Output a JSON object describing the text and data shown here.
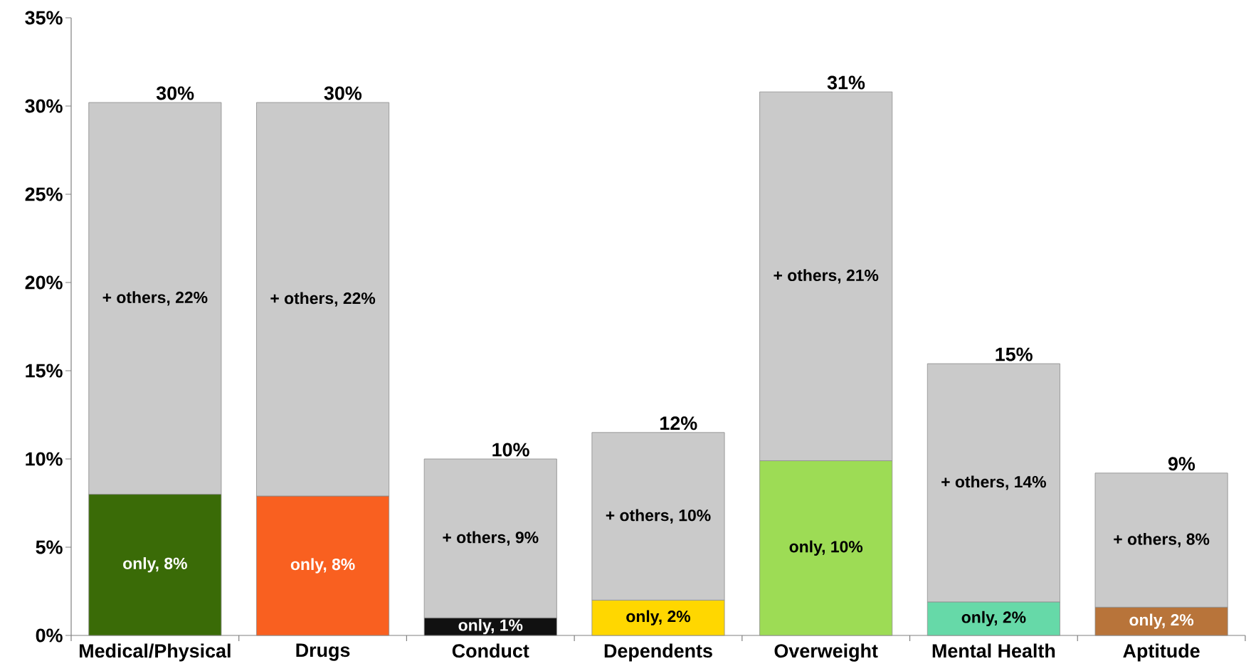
{
  "chart_data": {
    "type": "bar",
    "stacked": true,
    "categories": [
      "Medical/Physical",
      "Drugs",
      "Conduct",
      "Dependents",
      "Overweight",
      "Mental Health",
      "Aptitude"
    ],
    "series": [
      {
        "colors": [
          "#3a6b07",
          "#f96020",
          "#111111",
          "#ffd700",
          "#9ddc55",
          "#66d9a8",
          "#b8743a"
        ],
        "values": [
          8.0,
          7.9,
          1.0,
          2.0,
          9.9,
          1.9,
          1.6
        ],
        "value_labels": [
          "only, 8%",
          "only, 8%",
          "only, 1%",
          "only, 2%",
          "only, 10%",
          "only, 2%",
          "only, 2%"
        ]
      },
      {
        "color": "#cacaca",
        "values": [
          22.2,
          22.3,
          9.0,
          9.5,
          20.9,
          13.5,
          7.6
        ],
        "value_labels": [
          "+ others, 22%",
          "+ others, 22%",
          "+ others, 9%",
          "+ others, 10%",
          "+ others, 21%",
          "+ others, 14%",
          "+ others, 8%"
        ]
      }
    ],
    "totals": [
      "30%",
      "30%",
      "10%",
      "12%",
      "31%",
      "15%",
      "9%"
    ],
    "ylim": [
      0,
      35
    ],
    "yticks": [
      {
        "value": 0,
        "label": "0%"
      },
      {
        "value": 5,
        "label": "5%"
      },
      {
        "value": 10,
        "label": "10%"
      },
      {
        "value": 15,
        "label": "15%"
      },
      {
        "value": 20,
        "label": "20%"
      },
      {
        "value": 25,
        "label": "25%"
      },
      {
        "value": 30,
        "label": "30%"
      },
      {
        "value": 35,
        "label": "35%"
      }
    ]
  }
}
